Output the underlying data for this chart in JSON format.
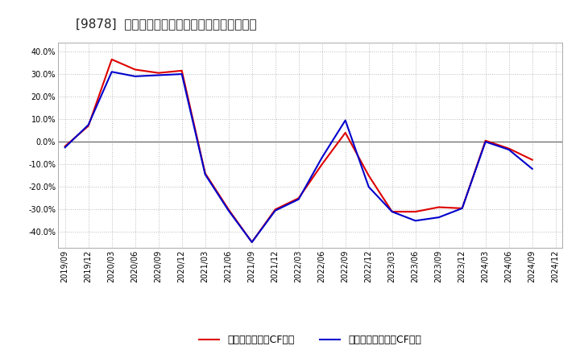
{
  "title": "[9878]  有利子負債キャッシュフロー比率の推移",
  "x_labels": [
    "2019/09",
    "2019/12",
    "2020/03",
    "2020/06",
    "2020/09",
    "2020/12",
    "2021/03",
    "2021/06",
    "2021/09",
    "2021/12",
    "2022/03",
    "2022/06",
    "2022/09",
    "2022/12",
    "2023/03",
    "2023/06",
    "2023/09",
    "2023/12",
    "2024/03",
    "2024/06",
    "2024/09",
    "2024/12"
  ],
  "red_values": [
    -2.0,
    7.0,
    36.5,
    32.0,
    30.5,
    31.5,
    -14.0,
    -30.0,
    -44.5,
    -30.0,
    -25.0,
    -10.0,
    4.0,
    -15.0,
    -31.0,
    -31.0,
    -29.0,
    -29.5,
    0.5,
    -3.0,
    -8.0,
    null
  ],
  "blue_values": [
    -2.5,
    7.5,
    31.0,
    29.0,
    29.5,
    30.0,
    -14.5,
    -30.5,
    -44.5,
    -30.5,
    -25.5,
    -7.0,
    9.5,
    -20.0,
    -31.0,
    -35.0,
    -33.5,
    -29.5,
    0.0,
    -3.5,
    -12.0,
    null
  ],
  "red_color": "#dd0000",
  "blue_color": "#0000cc",
  "ylim": [
    -47,
    44
  ],
  "yticks": [
    -40.0,
    -30.0,
    -20.0,
    -10.0,
    0.0,
    10.0,
    20.0,
    30.0,
    40.0
  ],
  "legend_red": "有利子負債営業CF比率",
  "legend_blue": "有利子負債フリーCF比率",
  "background_color": "#ffffff",
  "grid_color": "#aaaaaa",
  "title_fontsize": 11,
  "axis_fontsize": 7,
  "legend_fontsize": 9
}
